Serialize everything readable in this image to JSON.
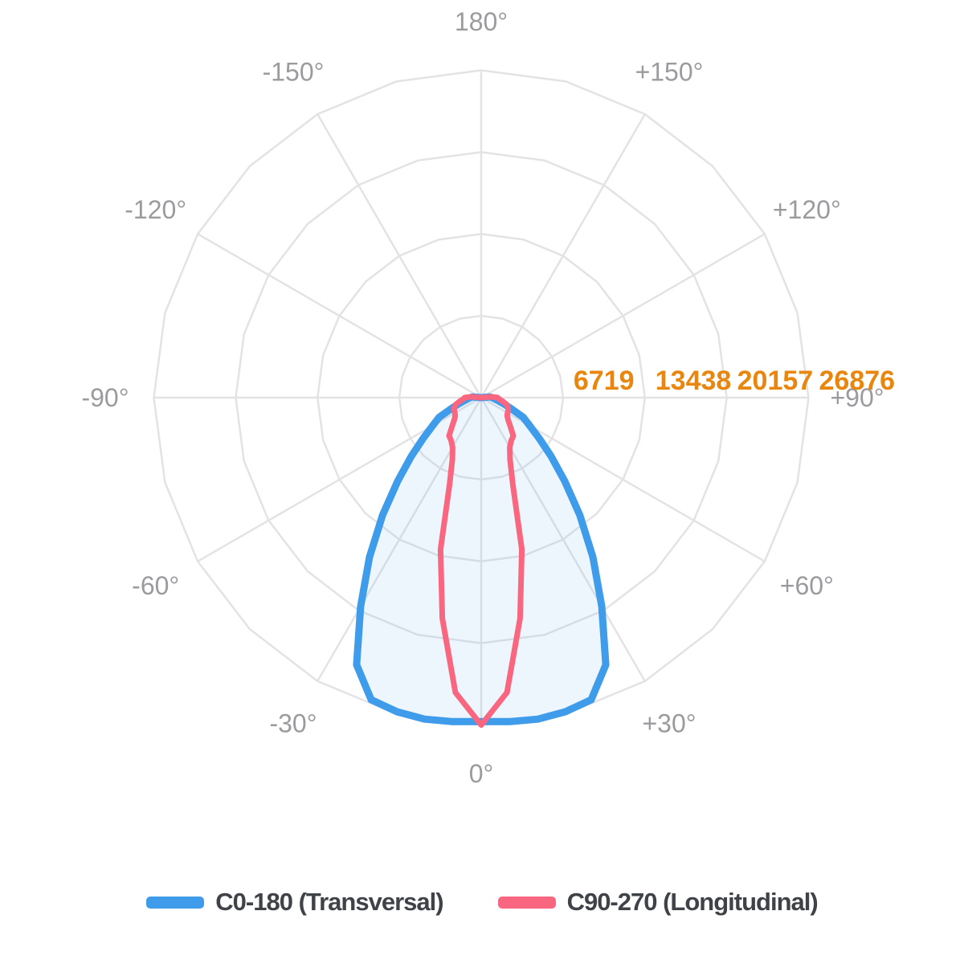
{
  "chart_data": {
    "type": "polar_photometric_intensity",
    "units": "cd",
    "grid": {
      "rings": 4,
      "spoke_step_deg": 30,
      "ring_vertex_step_deg": 15,
      "color": "#E3E3E6"
    },
    "r_axis": {
      "max": 26876,
      "ticks": [
        6719,
        13438,
        20157,
        26876
      ],
      "color": "#E8860D"
    },
    "angle_axis": {
      "step_deg": 30,
      "color": "#9B9B9F",
      "ticks": [
        {
          "angle_deg": 180,
          "label": "180°"
        },
        {
          "angle_deg": -150,
          "label": "-150°"
        },
        {
          "angle_deg": -120,
          "label": "-120°"
        },
        {
          "angle_deg": -90,
          "label": "-90°"
        },
        {
          "angle_deg": -60,
          "label": "-60°"
        },
        {
          "angle_deg": -30,
          "label": "-30°"
        },
        {
          "angle_deg": 0,
          "label": "0°"
        },
        {
          "angle_deg": 30,
          "label": "+30°"
        },
        {
          "angle_deg": 60,
          "label": "+60°"
        },
        {
          "angle_deg": 90,
          "label": "+90°"
        },
        {
          "angle_deg": 120,
          "label": "+120°"
        },
        {
          "angle_deg": 150,
          "label": "+150°"
        }
      ]
    },
    "series": [
      {
        "id": "c0-180",
        "name": "C0-180 (Transversal)",
        "color": "#3E9CEA",
        "fill": "rgba(62,156,234,0.09)",
        "angles_deg": [
          -95,
          -90,
          -85,
          -80,
          -75,
          -70,
          -65,
          -60,
          -55,
          -50,
          -45,
          -40,
          -35,
          -30,
          -25,
          -20,
          -15,
          -10,
          -5,
          0,
          5,
          10,
          15,
          20,
          25,
          30,
          35,
          40,
          45,
          50,
          55,
          60,
          65,
          70,
          75,
          80,
          85,
          90,
          95
        ],
        "values": [
          700,
          900,
          1100,
          1400,
          1900,
          2600,
          3800,
          4600,
          5800,
          7500,
          9700,
          12600,
          16000,
          19800,
          24200,
          26400,
          26700,
          26800,
          26700,
          26600,
          26700,
          26800,
          26700,
          26400,
          24200,
          19800,
          16000,
          12600,
          9700,
          7500,
          5800,
          4600,
          3800,
          2600,
          1900,
          1400,
          1100,
          900,
          700
        ]
      },
      {
        "id": "c90-270",
        "name": "C90-270 (Longitudinal)",
        "color": "#F8677F",
        "fill": "none",
        "angles_deg": [
          -95,
          -90,
          -85,
          -80,
          -75,
          -70,
          -65,
          -60,
          -55,
          -50,
          -45,
          -40,
          -35,
          -30,
          -25,
          -20,
          -15,
          -10,
          -5,
          0,
          5,
          10,
          15,
          20,
          25,
          30,
          35,
          40,
          45,
          50,
          55,
          60,
          65,
          70,
          75,
          80,
          85,
          90,
          95
        ],
        "values": [
          850,
          1350,
          1500,
          1800,
          2150,
          2350,
          2450,
          2500,
          2600,
          2900,
          3400,
          4100,
          4300,
          4700,
          5600,
          7600,
          12900,
          18400,
          24300,
          26876,
          24300,
          18400,
          12900,
          7600,
          5600,
          4700,
          4300,
          4100,
          3400,
          2900,
          2600,
          2500,
          2450,
          2350,
          2150,
          1800,
          1500,
          1350,
          850
        ]
      }
    ]
  },
  "legend": {
    "items": [
      {
        "label": "C0-180 (Transversal)",
        "color": "#3E9CEA"
      },
      {
        "label": "C90-270 (Longitudinal)",
        "color": "#F8677F"
      }
    ]
  }
}
